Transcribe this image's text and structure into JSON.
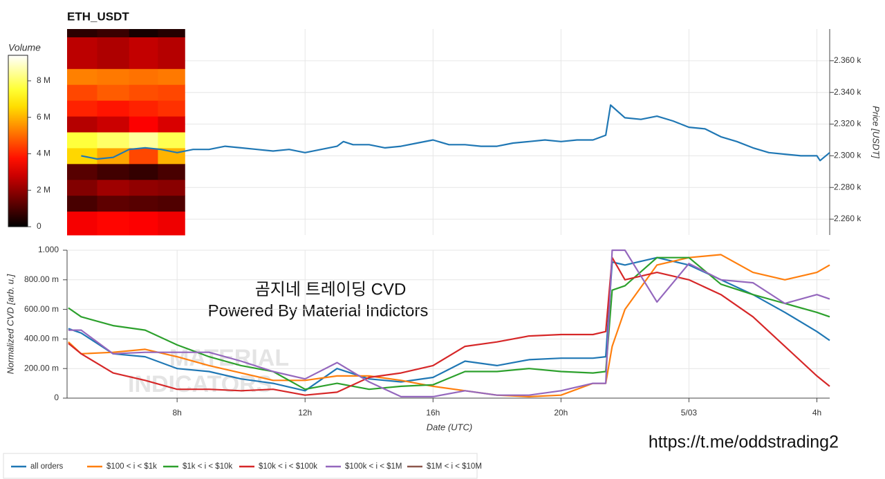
{
  "chart_data": [
    {
      "type": "line",
      "title": "ETH_USDT",
      "y_label": "Price [USDT]",
      "xlim": [
        4.56,
        28.4
      ],
      "ylim": [
        2250,
        2380
      ],
      "yticks": [
        {
          "value": 2260,
          "label": "2.260 k"
        },
        {
          "value": 2280,
          "label": "2.280 k"
        },
        {
          "value": 2300,
          "label": "2.300 k"
        },
        {
          "value": 2320,
          "label": "2.320 k"
        },
        {
          "value": 2340,
          "label": "2.340 k"
        },
        {
          "value": 2360,
          "label": "2.360 k"
        }
      ],
      "grid": true,
      "color": "#1f77b4",
      "x": [
        5,
        5.5,
        6,
        6.5,
        7,
        7.5,
        8,
        8.5,
        9,
        9.5,
        10,
        10.5,
        11,
        11.5,
        12,
        12.5,
        13,
        13.2,
        13.5,
        14,
        14.5,
        15,
        15.5,
        16,
        16.5,
        17,
        17.5,
        18,
        18.5,
        19,
        19.5,
        20,
        20.5,
        21,
        21.4,
        21.55,
        22,
        22.5,
        23,
        23.5,
        24,
        24.5,
        25,
        25.5,
        26,
        26.5,
        27,
        27.5,
        28,
        28.1,
        28.4
      ],
      "values": [
        2300,
        2298,
        2299,
        2304,
        2305,
        2304,
        2302,
        2304,
        2304,
        2306,
        2305,
        2304,
        2303,
        2304,
        2302,
        2304,
        2306,
        2309,
        2307,
        2307,
        2305,
        2306,
        2308,
        2310,
        2307,
        2307,
        2306,
        2306,
        2308,
        2309,
        2310,
        2309,
        2310,
        2310,
        2313,
        2332,
        2324,
        2323,
        2325,
        2322,
        2318,
        2317,
        2312,
        2309,
        2305,
        2302,
        2301,
        2300,
        2300,
        2297,
        2302
      ],
      "heatmap": {
        "x_edges": [
          4.56,
          5.5,
          6.5,
          7.4,
          8.24
        ],
        "y_edges": [
          2250,
          2265,
          2275,
          2285,
          2295,
          2305,
          2315,
          2325,
          2335,
          2345,
          2355,
          2375,
          2380
        ],
        "values": [
          [
            3400000.0,
            3600000.0,
            3500000.0,
            3300000.0
          ],
          [
            1000000.0,
            1300000.0,
            1200000.0,
            1100000.0
          ],
          [
            1800000.0,
            2200000.0,
            2000000.0,
            1900000.0
          ],
          [
            1200000.0,
            900000.0,
            700000.0,
            1000000.0
          ],
          [
            6500000.0,
            5800000.0,
            4500000.0,
            6000000.0
          ],
          [
            7600000.0,
            8000000.0,
            8500000.0,
            7800000.0
          ],
          [
            2500000.0,
            2800000.0,
            3500000.0,
            3000000.0
          ],
          [
            4000000.0,
            3800000.0,
            4000000.0,
            4200000.0
          ],
          [
            4500000.0,
            4800000.0,
            4600000.0,
            4500000.0
          ],
          [
            5300000.0,
            5200000.0,
            5100000.0,
            5200000.0
          ],
          [
            2600000.0,
            2400000.0,
            2700000.0,
            2500000.0
          ],
          [
            600000.0,
            800000.0,
            300000.0,
            500000.0
          ]
        ],
        "colorbar": {
          "label": "Volume",
          "clim": [
            0,
            9400000.0
          ],
          "ticks": [
            0,
            {
              "value": 2000000.0,
              "label": "2 M"
            },
            {
              "value": 4000000.0,
              "label": "4 M"
            },
            {
              "value": 6000000.0,
              "label": "6 M"
            },
            {
              "value": 8000000.0,
              "label": "8 M"
            }
          ]
        }
      }
    },
    {
      "type": "line",
      "x_label": "Date (UTC)",
      "y_label": "Normalized CVD [arb. u.]",
      "xlim": [
        4.56,
        28.4
      ],
      "xticks": [
        {
          "value": 8,
          "label": "8h"
        },
        {
          "value": 12,
          "label": "12h"
        },
        {
          "value": 16,
          "label": "16h"
        },
        {
          "value": 20,
          "label": "20h"
        },
        {
          "value": 24,
          "label": "5/03"
        },
        {
          "value": 28,
          "label": "4h"
        }
      ],
      "ylim": [
        0,
        1
      ],
      "yticks": [
        0,
        {
          "value": 0.2,
          "label": "200.00 m"
        },
        {
          "value": 0.4,
          "label": "400.00 m"
        },
        {
          "value": 0.6,
          "label": "600.00 m"
        },
        {
          "value": 0.8,
          "label": "800.00 m"
        },
        {
          "value": 1,
          "label": "1.000"
        }
      ],
      "grid": true,
      "annotations": [
        "곰지네 트레이딩 CVD",
        "Powered By Material Indictors"
      ],
      "watermark": [
        "MATERIAL",
        "INDICATORS"
      ],
      "x": [
        4.6,
        5,
        6,
        7,
        8,
        9,
        10,
        11,
        12,
        13,
        14,
        15,
        16,
        17,
        18,
        19,
        20,
        21,
        21.4,
        21.6,
        22,
        23,
        24,
        25,
        26,
        27,
        28,
        28.4
      ],
      "series": [
        {
          "name": "all orders",
          "color": "#1f77b4",
          "values": [
            0.47,
            0.44,
            0.3,
            0.28,
            0.2,
            0.18,
            0.13,
            0.1,
            0.05,
            0.2,
            0.13,
            0.11,
            0.14,
            0.25,
            0.22,
            0.26,
            0.27,
            0.27,
            0.28,
            0.92,
            0.9,
            0.95,
            0.9,
            0.8,
            0.7,
            0.58,
            0.45,
            0.39
          ]
        },
        {
          "name": "$100 < i < $1k",
          "color": "#ff7f0e",
          "values": [
            0.38,
            0.3,
            0.31,
            0.33,
            0.28,
            0.22,
            0.17,
            0.12,
            0.12,
            0.15,
            0.15,
            0.12,
            0.08,
            0.05,
            0.02,
            0.01,
            0.02,
            0.1,
            0.1,
            0.35,
            0.6,
            0.9,
            0.95,
            0.97,
            0.85,
            0.8,
            0.85,
            0.9
          ]
        },
        {
          "name": "$1k < i < $10k",
          "color": "#2ca02c",
          "values": [
            0.61,
            0.55,
            0.49,
            0.46,
            0.36,
            0.28,
            0.22,
            0.18,
            0.06,
            0.1,
            0.06,
            0.08,
            0.09,
            0.18,
            0.18,
            0.2,
            0.18,
            0.17,
            0.18,
            0.73,
            0.76,
            0.95,
            0.95,
            0.77,
            0.7,
            0.64,
            0.58,
            0.55
          ]
        },
        {
          "name": "$10k < i < $100k",
          "color": "#d62728",
          "values": [
            0.37,
            0.3,
            0.17,
            0.12,
            0.06,
            0.06,
            0.05,
            0.06,
            0.02,
            0.04,
            0.14,
            0.17,
            0.22,
            0.35,
            0.38,
            0.42,
            0.43,
            0.43,
            0.45,
            0.95,
            0.8,
            0.85,
            0.8,
            0.7,
            0.55,
            0.35,
            0.15,
            0.08
          ]
        },
        {
          "name": "$100k < i < $1M",
          "color": "#9467bd",
          "values": [
            0.46,
            0.46,
            0.3,
            0.31,
            0.31,
            0.31,
            0.25,
            0.18,
            0.13,
            0.24,
            0.11,
            0.01,
            0.01,
            0.05,
            0.02,
            0.02,
            0.05,
            0.1,
            0.1,
            1.0,
            1.0,
            0.65,
            0.91,
            0.8,
            0.78,
            0.64,
            0.7,
            0.67
          ]
        },
        {
          "name": "$1M < i < $10M",
          "color": "#8c564b",
          "values": [
            null,
            null,
            null,
            null,
            null,
            null,
            null,
            null,
            null,
            null,
            null,
            null,
            null,
            null,
            null,
            null,
            null,
            null,
            null,
            null,
            null,
            null,
            null,
            null,
            null,
            null,
            null,
            null
          ]
        }
      ]
    }
  ],
  "link": "https://t.me/oddstrading2"
}
